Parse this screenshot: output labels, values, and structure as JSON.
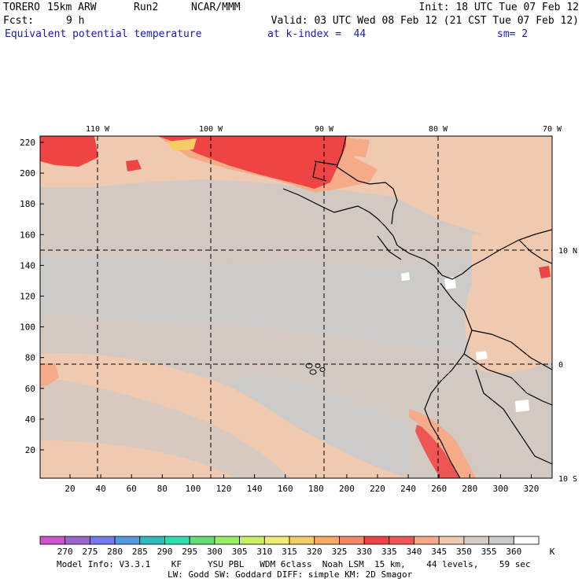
{
  "header": {
    "model": "TORERO",
    "resolution": "15km ARW",
    "run": "Run2",
    "org": "NCAR/MMM",
    "init": "Init: 18 UTC Tue 07 Feb 12",
    "fcst_label": "Fcst:",
    "fcst_value": "9 h",
    "valid": "Valid: 03 UTC Wed 08 Feb 12 (21 CST Tue 07 Feb 12)",
    "field": "Equivalent potential temperature",
    "level": "at k-index =  44",
    "smoothing": "sm= 2"
  },
  "map": {
    "lon_labels": [
      "110 W",
      "100 W",
      "90 W",
      "80 W",
      "70 W"
    ],
    "lat_labels": [
      "10 N",
      "0",
      "10 S"
    ],
    "y_ticks": [
      "220",
      "200",
      "180",
      "160",
      "140",
      "120",
      "100",
      "80",
      "60",
      "40",
      "20"
    ],
    "x_ticks": [
      "20",
      "40",
      "60",
      "80",
      "100",
      "120",
      "140",
      "160",
      "180",
      "200",
      "220",
      "240",
      "260",
      "280",
      "300",
      "320"
    ]
  },
  "colorbar": {
    "levels": [
      "270",
      "275",
      "280",
      "285",
      "290",
      "295",
      "300",
      "305",
      "310",
      "315",
      "320",
      "325",
      "330",
      "335",
      "340",
      "345",
      "350",
      "355",
      "360"
    ],
    "unit": "K",
    "colors": [
      "#cc55cc",
      "#9966cc",
      "#7777ee",
      "#5599dd",
      "#33bbbb",
      "#33ddaa",
      "#66dd77",
      "#99ee66",
      "#ccee66",
      "#eeee77",
      "#f5cc66",
      "#f5aa66",
      "#f58866",
      "#ee4444",
      "#ee5555",
      "#f5aa88",
      "#efc9b0",
      "#d5cdc7",
      "#cccccc",
      "#ffffff"
    ]
  },
  "footer": {
    "line1": "Model Info: V3.3.1    KF     YSU PBL   WDM 6class  Noah LSM  15 km,    44 levels,    59 sec",
    "line2": "LW: Godd SW: Goddard DIFF: simple KM: 2D Smagor"
  }
}
